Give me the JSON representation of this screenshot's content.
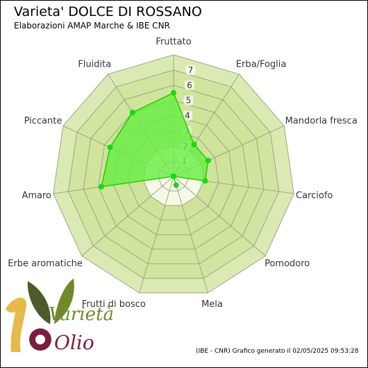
{
  "header": {
    "title": "Varieta' DOLCE DI ROSSANO",
    "subtitle": "Elaborazioni AMAP Marche & IBE CNR"
  },
  "footer": {
    "text": "(IBE - CNR) Grafico generato il 02/05/2025 09:53:28"
  },
  "logo": {
    "word1": "Varietà",
    "word2": "Olio"
  },
  "colors": {
    "ring_fill": "#cfe39a",
    "center_fill": "#f6f9e6",
    "grid_line": "#9aa58a",
    "series_fill": "#66ee44",
    "series_line": "#22cc00",
    "point": "#11dd00"
  },
  "chart_data": {
    "type": "radar",
    "title": "Varieta' DOLCE DI ROSSANO",
    "subtitle": "Elaborazioni AMAP Marche & IBE CNR",
    "rlim": [
      0,
      8
    ],
    "ticks": [
      1,
      2,
      3,
      4,
      5,
      6,
      7
    ],
    "axes": [
      "Fruttato",
      "Erba/Foglia",
      "Mandorla fresca",
      "Carciofo",
      "Pomodoro",
      "Mela",
      "Frutti di bosco",
      "Erbe aromatiche",
      "Amaro",
      "Piccante",
      "Fluidita"
    ],
    "series": [
      {
        "values": [
          5.5,
          2.5,
          2.5,
          2.1,
          0,
          0.6,
          0,
          0,
          4.8,
          4.6,
          5.0
        ]
      }
    ]
  }
}
